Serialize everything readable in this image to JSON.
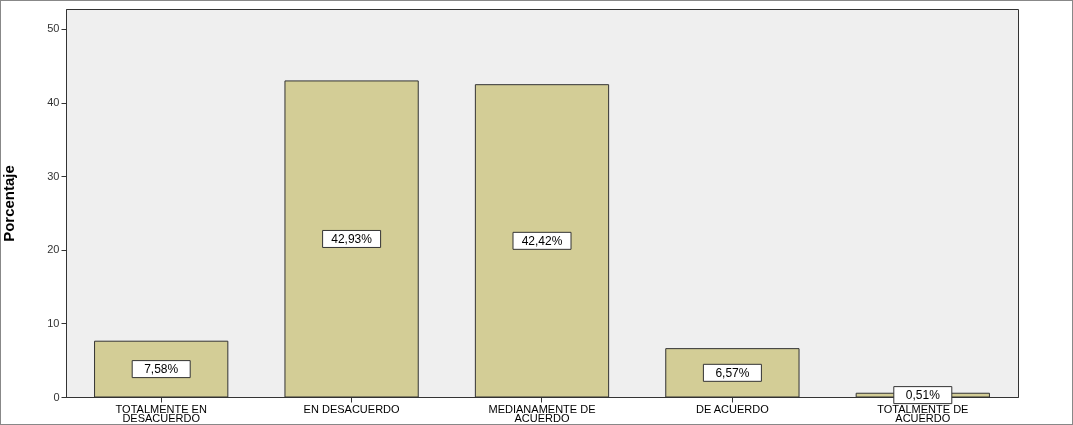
{
  "chart_data": {
    "type": "bar",
    "ylabel": "Porcentaje",
    "categories": [
      "TOTALMENTE  EN DESACUERDO",
      "EN DESACUERDO",
      "MEDIANAMENTE DE ACUERDO",
      "DE ACUERDO",
      "TOTALMENTE DE ACUERDO"
    ],
    "values": [
      7.58,
      42.93,
      42.42,
      6.57,
      0.51
    ],
    "value_labels": [
      "7,58%",
      "42,93%",
      "42,42%",
      "6,57%",
      "0,51%"
    ],
    "color": "#d3cd96",
    "ylim": [
      0,
      52.7
    ],
    "yticks": [
      0,
      10,
      20,
      30,
      40,
      50
    ],
    "grid": false
  }
}
